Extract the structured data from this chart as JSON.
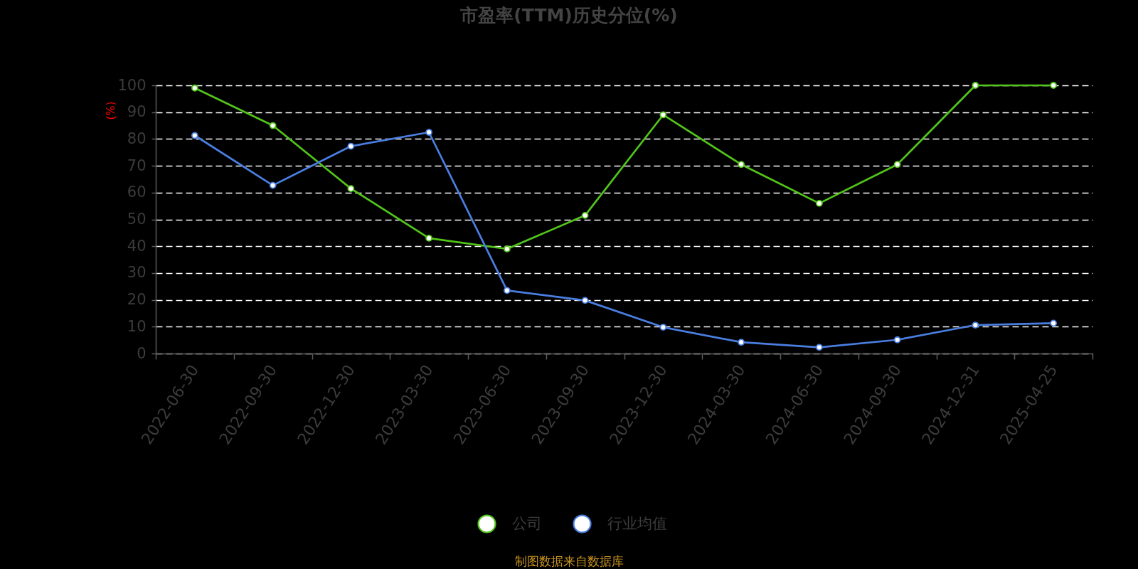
{
  "chart_data": {
    "type": "line",
    "title": "市盈率(TTM)历史分位(%)",
    "ylabel": "(%)",
    "categories": [
      "2022-06-30",
      "2022-09-30",
      "2022-12-30",
      "2023-03-30",
      "2023-06-30",
      "2023-09-30",
      "2023-12-30",
      "2024-03-30",
      "2024-06-30",
      "2024-09-30",
      "2024-12-31",
      "2025-04-25"
    ],
    "series": [
      {
        "name": "公司",
        "color": "#52c41a",
        "values": [
          99,
          85,
          61.5,
          43,
          39,
          51.5,
          89,
          70.5,
          56,
          70.5,
          100,
          100
        ]
      },
      {
        "name": "行业均值",
        "color": "#4a7ee0",
        "values": [
          81.3,
          62.7,
          77.3,
          82.5,
          23.5,
          19.8,
          9.8,
          4.2,
          2.3,
          5.1,
          10.6,
          11.3
        ]
      }
    ],
    "ylim": [
      0,
      100
    ],
    "yticks": [
      0,
      10,
      20,
      30,
      40,
      50,
      60,
      70,
      80,
      90,
      100
    ],
    "grid": "y",
    "legend": "bottom",
    "marker": "circle",
    "line_style": "solid",
    "annotations": [
      "制图数据来自数据库"
    ]
  }
}
